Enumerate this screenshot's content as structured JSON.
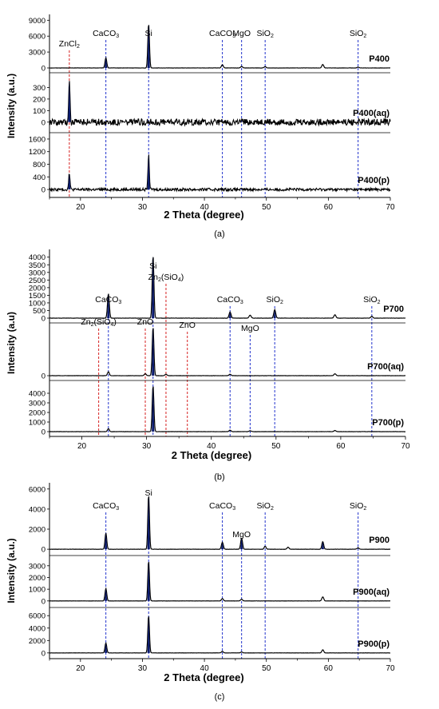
{
  "chart_data": [
    {
      "type": "line",
      "caption": "(a)",
      "xlabel": "2 Theta (degree)",
      "ylabel": "Intensity (a.u.)",
      "xlim": [
        15,
        70
      ],
      "xticks": [
        20,
        30,
        40,
        50,
        60,
        70
      ],
      "colors": {
        "trace": "#000000",
        "peak": "#0a1a6e",
        "blue_ref": "#2233cc",
        "red_ref": "#d62020"
      },
      "panels": [
        {
          "name": "P400",
          "ylim": [
            0,
            9500
          ],
          "yticks": [
            0,
            3000,
            6000,
            9000
          ],
          "noise": 0,
          "peaks": [
            [
              24.1,
              1900,
              0.28
            ],
            [
              31.0,
              8300,
              0.26
            ],
            [
              42.9,
              600,
              0.3
            ],
            [
              46.0,
              300,
              0.3
            ],
            [
              49.8,
              250,
              0.3
            ],
            [
              59.1,
              650,
              0.3
            ],
            [
              64.8,
              150,
              0.3
            ]
          ]
        },
        {
          "name": "P400(aq)",
          "ylim": [
            -50,
            400
          ],
          "yticks": [
            0,
            100,
            200,
            300
          ],
          "noise": 14,
          "peaks": [
            [
              18.2,
              360,
              0.22
            ]
          ]
        },
        {
          "name": "P400(p)",
          "ylim": [
            -100,
            1700
          ],
          "yticks": [
            0,
            400,
            800,
            1200,
            1600
          ],
          "noise": 22,
          "peaks": [
            [
              18.2,
              500,
              0.22
            ],
            [
              31.0,
              1100,
              0.22
            ]
          ]
        }
      ],
      "references": [
        {
          "x": 18.2,
          "label": "ZnCl2",
          "color": "red"
        },
        {
          "x": 24.1,
          "label": "CaCO3",
          "color": "blue"
        },
        {
          "x": 31.0,
          "label": "Si",
          "color": "blue"
        },
        {
          "x": 42.9,
          "label": "CaCO3",
          "color": "blue"
        },
        {
          "x": 46.0,
          "label": "MgO",
          "color": "blue"
        },
        {
          "x": 49.8,
          "label": "SiO2",
          "color": "blue"
        },
        {
          "x": 64.8,
          "label": "SiO2",
          "color": "blue"
        }
      ]
    },
    {
      "type": "line",
      "caption": "(b)",
      "xlabel": "2 Theta (degree)",
      "ylabel": "Intensity (a.u)",
      "xlim": [
        15,
        70
      ],
      "xticks": [
        20,
        30,
        40,
        50,
        60,
        70
      ],
      "colors": {
        "trace": "#000000",
        "peak": "#0a1a6e",
        "blue_ref": "#2233cc",
        "red_ref": "#d62020"
      },
      "panels": [
        {
          "name": "P700",
          "ylim": [
            0,
            4300
          ],
          "yticks": [
            0,
            500,
            1000,
            1500,
            2000,
            2500,
            3000,
            3500,
            4000
          ],
          "noise": 0,
          "peaks": [
            [
              24.1,
              1600,
              0.28
            ],
            [
              31.0,
              4100,
              0.26
            ],
            [
              42.9,
              400,
              0.3
            ],
            [
              46.0,
              200,
              0.3
            ],
            [
              49.8,
              550,
              0.3
            ],
            [
              59.1,
              220,
              0.3
            ],
            [
              64.8,
              120,
              0.3
            ]
          ]
        },
        {
          "name": "P700(aq)",
          "ylim": [
            0,
            5000
          ],
          "yticks": [
            0
          ],
          "noise": 0,
          "peaks": [
            [
              24.1,
              400,
              0.28
            ],
            [
              29.8,
              200,
              0.3
            ],
            [
              31.0,
              4900,
              0.26
            ],
            [
              33.0,
              150,
              0.3
            ],
            [
              42.9,
              150,
              0.3
            ],
            [
              59.1,
              200,
              0.3
            ]
          ]
        },
        {
          "name": "P700(p)",
          "ylim": [
            0,
            5000
          ],
          "yticks": [
            0,
            1000,
            2000,
            3000,
            4000
          ],
          "noise": 0,
          "peaks": [
            [
              24.1,
              300,
              0.28
            ],
            [
              31.0,
              4800,
              0.26
            ],
            [
              42.9,
              150,
              0.3
            ],
            [
              46.0,
              100,
              0.3
            ],
            [
              59.1,
              120,
              0.3
            ]
          ]
        }
      ],
      "references": [
        {
          "x": 22.6,
          "label": "Zn2(SiO4)",
          "color": "red"
        },
        {
          "x": 24.1,
          "label": "CaCO3",
          "color": "blue"
        },
        {
          "x": 29.8,
          "label": "ZnO",
          "color": "red"
        },
        {
          "x": 31.0,
          "label": "Si",
          "color": "blue"
        },
        {
          "x": 33.0,
          "label": "Zn2(SiO4)",
          "color": "red"
        },
        {
          "x": 36.3,
          "label": "ZnO",
          "color": "red"
        },
        {
          "x": 42.9,
          "label": "CaCO3",
          "color": "blue"
        },
        {
          "x": 46.0,
          "label": "MgO",
          "color": "blue"
        },
        {
          "x": 49.8,
          "label": "SiO2",
          "color": "blue"
        },
        {
          "x": 64.8,
          "label": "SiO2",
          "color": "blue"
        }
      ]
    },
    {
      "type": "line",
      "caption": "(c)",
      "xlabel": "2 Theta (degree)",
      "ylabel": "Intensity (a.u.)",
      "xlim": [
        15,
        70
      ],
      "xticks": [
        20,
        30,
        40,
        50,
        60,
        70
      ],
      "colors": {
        "trace": "#000000",
        "peak": "#0a1a6e",
        "blue_ref": "#2233cc",
        "red_ref": "#d62020"
      },
      "panels": [
        {
          "name": "P900",
          "ylim": [
            -150,
            6300
          ],
          "yticks": [
            0,
            2000,
            4000,
            6000
          ],
          "noise": 0,
          "peaks": [
            [
              24.1,
              1600,
              0.28
            ],
            [
              31.0,
              5400,
              0.26
            ],
            [
              42.9,
              700,
              0.3
            ],
            [
              46.0,
              1100,
              0.3
            ],
            [
              49.8,
              300,
              0.3
            ],
            [
              53.5,
              200,
              0.3
            ],
            [
              59.1,
              750,
              0.3
            ],
            [
              64.8,
              150,
              0.3
            ]
          ]
        },
        {
          "name": "P900(aq)",
          "ylim": [
            -150,
            3600
          ],
          "yticks": [
            0,
            1000,
            2000,
            3000
          ],
          "noise": 0,
          "peaks": [
            [
              24.1,
              1050,
              0.28
            ],
            [
              31.0,
              3400,
              0.26
            ],
            [
              42.9,
              200,
              0.3
            ],
            [
              46.0,
              150,
              0.3
            ],
            [
              59.1,
              350,
              0.3
            ]
          ]
        },
        {
          "name": "P900(p)",
          "ylim": [
            -150,
            6800
          ],
          "yticks": [
            0,
            2000,
            4000,
            6000
          ],
          "noise": 0,
          "peaks": [
            [
              24.1,
              1600,
              0.28
            ],
            [
              31.0,
              6000,
              0.26
            ],
            [
              42.9,
              250,
              0.3
            ],
            [
              46.0,
              150,
              0.3
            ],
            [
              59.1,
              500,
              0.3
            ]
          ]
        }
      ],
      "references": [
        {
          "x": 24.1,
          "label": "CaCO3",
          "color": "blue"
        },
        {
          "x": 31.0,
          "label": "Si",
          "color": "blue"
        },
        {
          "x": 42.9,
          "label": "CaCO3",
          "color": "blue"
        },
        {
          "x": 46.0,
          "label": "MgO",
          "color": "blue"
        },
        {
          "x": 49.8,
          "label": "SiO2",
          "color": "blue"
        },
        {
          "x": 64.8,
          "label": "SiO2",
          "color": "blue"
        }
      ]
    }
  ]
}
